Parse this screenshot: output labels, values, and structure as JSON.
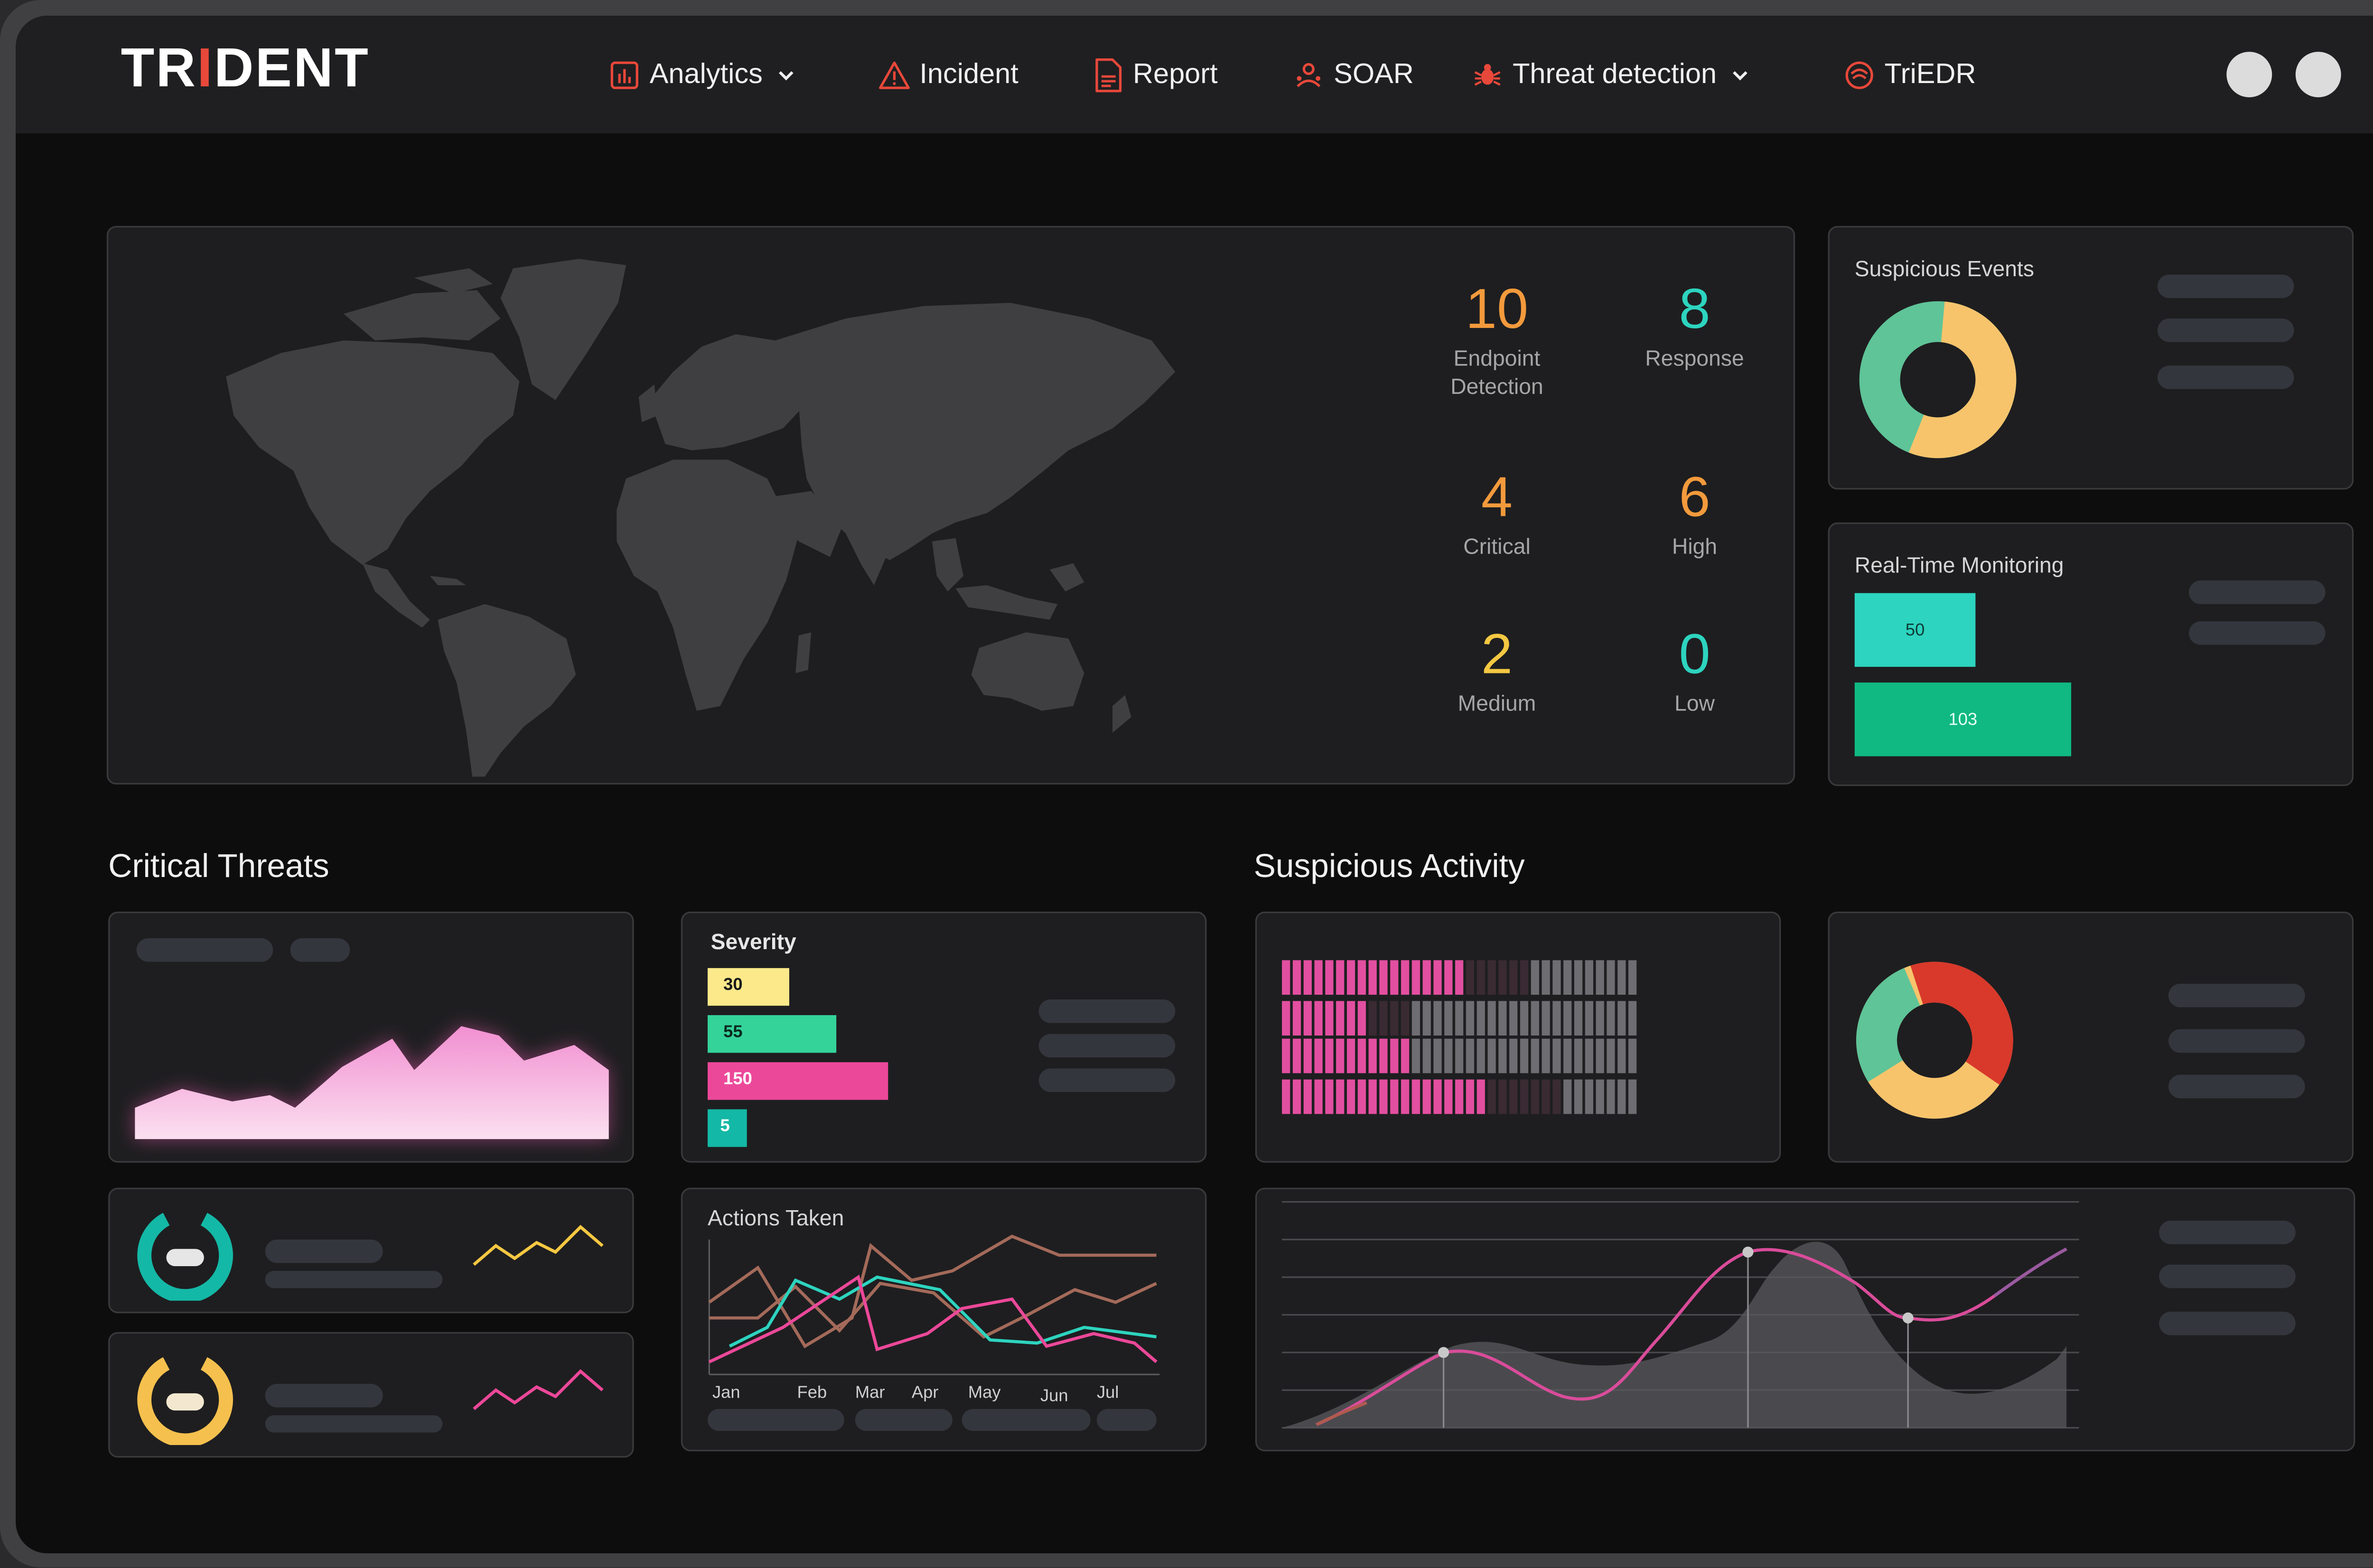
{
  "brand": {
    "prefix": "TR",
    "accent": "I",
    "suffix": "DENT"
  },
  "nav": [
    {
      "label": "Analytics",
      "icon": "analytics-icon",
      "dropdown": true
    },
    {
      "label": "Incident",
      "icon": "warning-icon",
      "dropdown": false
    },
    {
      "label": "Report",
      "icon": "report-icon",
      "dropdown": false
    },
    {
      "label": "SOAR",
      "icon": "soar-icon",
      "dropdown": false
    },
    {
      "label": "Threat detection",
      "icon": "bug-icon",
      "dropdown": true
    },
    {
      "label": "TriEDR",
      "icon": "triedr-icon",
      "dropdown": false
    }
  ],
  "stats": [
    {
      "value": "10",
      "label": "Endpoint Detection",
      "color": "#f39a3c"
    },
    {
      "value": "8",
      "label": "Response",
      "color": "#2dd4bf"
    },
    {
      "value": "4",
      "label": "Critical",
      "color": "#f39a3c"
    },
    {
      "value": "6",
      "label": "High",
      "color": "#f39a3c"
    },
    {
      "value": "2",
      "label": "Medium",
      "color": "#f5c842"
    },
    {
      "value": "0",
      "label": "Low",
      "color": "#2dd4bf"
    }
  ],
  "suspicious_events": {
    "title": "Suspicious Events"
  },
  "realtime": {
    "title": "Real-Time Monitoring",
    "bars": [
      {
        "value": "50",
        "color": "#2dd4bf"
      },
      {
        "value": "103",
        "color": "#10b981"
      }
    ]
  },
  "sections": {
    "critical": "Critical Threats",
    "activity": "Suspicious Activity"
  },
  "severity": {
    "title": "Severity",
    "bars": [
      {
        "value": "30",
        "color": "#fce98a"
      },
      {
        "value": "55",
        "color": "#34d399"
      },
      {
        "value": "150",
        "color": "#ec4899"
      },
      {
        "value": "5",
        "color": "#14b8a6"
      }
    ]
  },
  "actions": {
    "title": "Actions Taken",
    "months": [
      "Jan",
      "Feb",
      "Mar",
      "Apr",
      "May",
      "Jun",
      "Jul"
    ]
  },
  "colors": {
    "accent": "#e8483a",
    "teal": "#14b8a6",
    "yellow": "#f5c04e",
    "pink": "#ec4899",
    "green": "#5fc498"
  }
}
